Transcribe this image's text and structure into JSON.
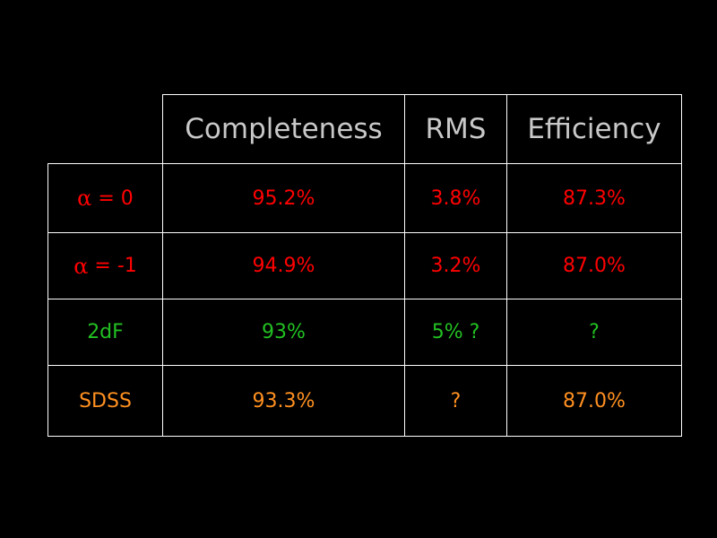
{
  "table": {
    "headers": [
      "Completeness",
      "RMS",
      "Efficiency"
    ],
    "rows": [
      {
        "label_symbol": "α",
        "label_rest": " = 0",
        "label": "α = 0",
        "completeness": "95.2%",
        "rms": "3.8%",
        "efficiency": "87.3%",
        "color": "#ff0000"
      },
      {
        "label_symbol": "α",
        "label_rest": " = -1",
        "label": "α = -1",
        "completeness": "94.9%",
        "rms": "3.2%",
        "efficiency": "87.0%",
        "color": "#ff0000"
      },
      {
        "label": "2dF",
        "completeness": "93%",
        "rms": "5% ?",
        "efficiency": "?",
        "color": "#22c022"
      },
      {
        "label": "SDSS",
        "completeness": "93.3%",
        "rms": "?",
        "efficiency": "87.0%",
        "color": "#ff9020"
      }
    ]
  }
}
